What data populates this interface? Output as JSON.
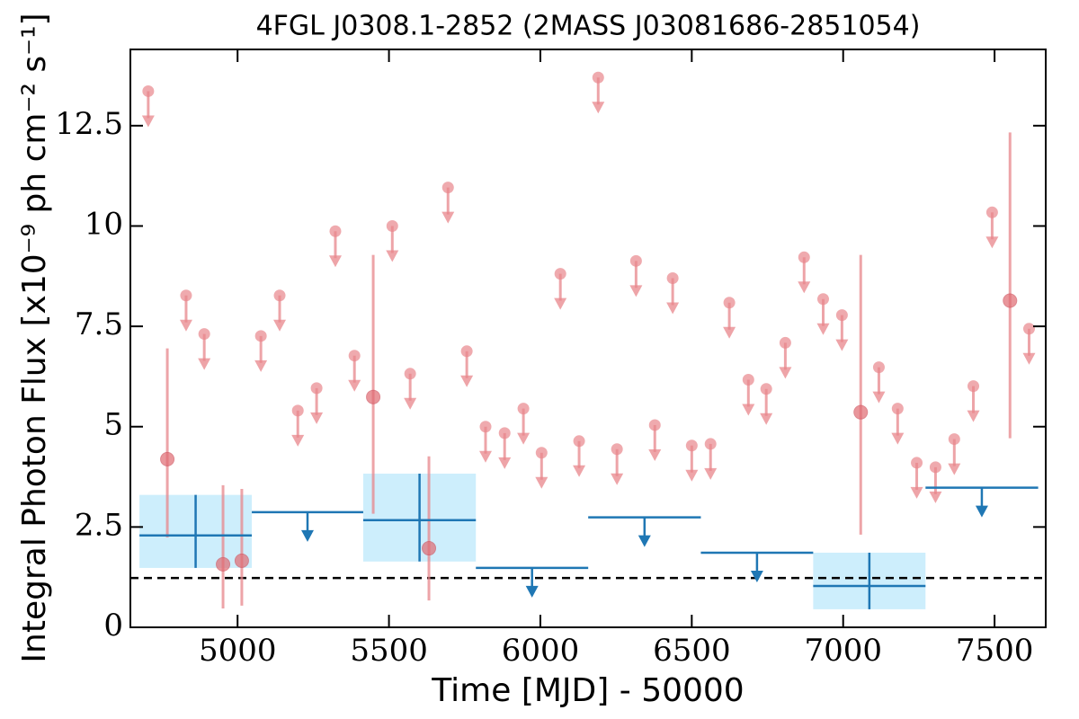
{
  "chart_data": {
    "type": "lightcurve",
    "title": "4FGL J0308.1-2852 (2MASS J03081686-2851054)",
    "x_label": "Time [MJD] - 50000",
    "y_label": "Integral Photon Flux [x10⁻⁹ ph cm⁻² s⁻¹]",
    "xlim": [
      4646,
      7669
    ],
    "ylim": [
      0,
      14.4
    ],
    "xticks": [
      5000,
      5500,
      6000,
      6500,
      7000,
      7500
    ],
    "yticks": [
      0,
      2.5,
      5,
      7.5,
      10,
      12.5
    ],
    "reference_level": 1.23,
    "monthly_detections": {
      "color": "#e8868b",
      "x": [
        4768,
        4952,
        5014,
        5448,
        5632,
        7058,
        7551
      ],
      "values": [
        4.19,
        1.57,
        1.66,
        5.74,
        1.97,
        5.36,
        8.14
      ],
      "lower": [
        2.24,
        0.47,
        0.54,
        2.83,
        0.67,
        2.31,
        4.71
      ],
      "upper": [
        6.95,
        3.54,
        3.45,
        9.28,
        4.26,
        9.28,
        12.33
      ]
    },
    "monthly_upper_limits": {
      "color": "#e8868b",
      "x": [
        4705,
        4830,
        4890,
        5077,
        5139,
        5199,
        5261,
        5323,
        5386,
        5511,
        5570,
        5695,
        5757,
        5819,
        5882,
        5944,
        6004,
        6066,
        6128,
        6191,
        6253,
        6316,
        6378,
        6437,
        6500,
        6562,
        6624,
        6687,
        6746,
        6809,
        6871,
        6934,
        6996,
        7118,
        7180,
        7243,
        7305,
        7367,
        7430,
        7492,
        7614
      ],
      "values": [
        13.36,
        8.27,
        7.31,
        7.26,
        8.27,
        5.4,
        5.96,
        9.87,
        6.77,
        10.0,
        6.32,
        10.96,
        6.88,
        5.0,
        4.84,
        5.45,
        4.35,
        8.81,
        4.64,
        13.7,
        4.44,
        9.13,
        5.04,
        8.7,
        4.53,
        4.57,
        8.09,
        6.17,
        5.94,
        7.09,
        9.22,
        8.18,
        7.78,
        6.48,
        5.45,
        4.1,
        3.99,
        4.69,
        6.01,
        10.34,
        7.44
      ]
    },
    "yearly_detections": {
      "color": "#1f77b4",
      "box_color": "#cdeefc",
      "x_start": [
        4676,
        5415,
        6901
      ],
      "x_end": [
        5047,
        5787,
        7272
      ],
      "values": [
        2.29,
        2.67,
        1.03
      ],
      "lower": [
        1.48,
        1.64,
        0.45
      ],
      "upper": [
        3.3,
        3.83,
        1.86
      ]
    },
    "yearly_upper_limits": {
      "color": "#1f77b4",
      "x_start": [
        5047,
        5787,
        6158,
        6530,
        7272
      ],
      "x_end": [
        5415,
        6158,
        6530,
        6901,
        7644
      ],
      "values": [
        2.87,
        1.48,
        2.74,
        1.86,
        3.48
      ]
    }
  }
}
